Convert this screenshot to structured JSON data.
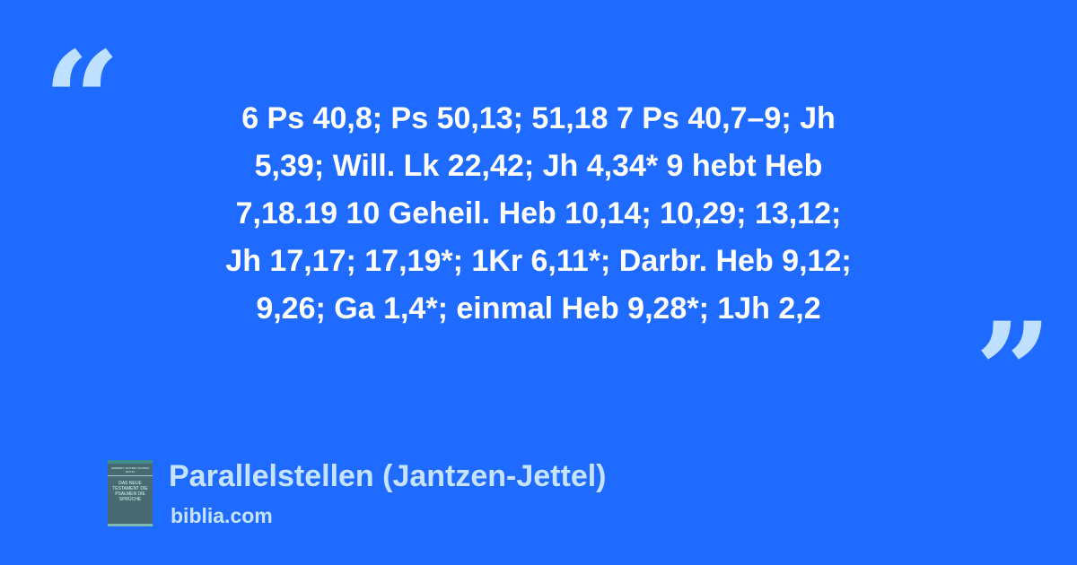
{
  "quote_lines": [
    "6 Ps 40,8; Ps 50,13; 51,18 7 Ps 40,7–9; Jh",
    "5,39; Will. Lk 22,42; Jh 4,34* 9 hebt Heb",
    "7,18.19 10 Geheil. Heb 10,14; 10,29; 13,12;",
    "Jh 17,17; 17,19*; 1Kr 6,11*; Darbr. Heb 9,12;",
    "9,26; Ga 1,4*; einmal Heb 9,28*; 1Jh 2,2"
  ],
  "open_quote": "“",
  "close_quote": "”",
  "source": {
    "title": "Parallelstellen (Jantzen-Jettel)",
    "site": "biblia.com",
    "cover_authors": "HERBERT JANTZEN THOMAS JETTEL",
    "cover_text": "DAS NEUE TESTAMENT DIE PSALMEN DIE SPRÜCHE"
  },
  "colors": {
    "background": "#206BFF",
    "accent": "#BFE0FF",
    "text": "#FFFFFF"
  }
}
